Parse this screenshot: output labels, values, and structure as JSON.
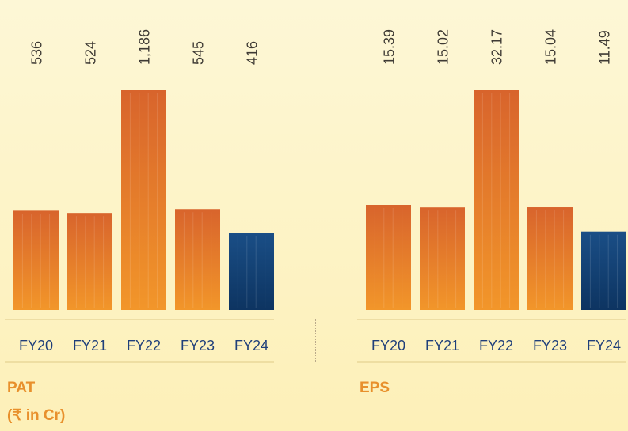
{
  "colors": {
    "orange_top": "#d8642c",
    "orange_bottom": "#f2962a",
    "blue_top": "#1a4e86",
    "blue_bottom": "#0d3461",
    "label_dark": "#3e3a34",
    "category_blue": "#1f3f7a",
    "caption_orange": "#e8902c",
    "rule": "#ead79a"
  },
  "chart_data": [
    {
      "type": "bar",
      "categories": [
        "FY20",
        "FY21",
        "FY22",
        "FY23",
        "FY24"
      ],
      "values": [
        536,
        524,
        1186,
        545,
        416
      ],
      "value_labels": [
        "536",
        "524",
        "1,186",
        "545",
        "416"
      ],
      "title": "PAT",
      "subtitle": "(₹ in Cr)",
      "ylim": [
        0,
        1186
      ],
      "highlight_index": 4
    },
    {
      "type": "bar",
      "categories": [
        "FY20",
        "FY21",
        "FY22",
        "FY23",
        "FY24"
      ],
      "values": [
        15.39,
        15.02,
        32.17,
        15.04,
        11.49
      ],
      "value_labels": [
        "15.39",
        "15.02",
        "32.17",
        "15.04",
        "11.49"
      ],
      "title": "EPS",
      "subtitle": "",
      "ylim": [
        0,
        32.17
      ],
      "highlight_index": 4
    }
  ]
}
